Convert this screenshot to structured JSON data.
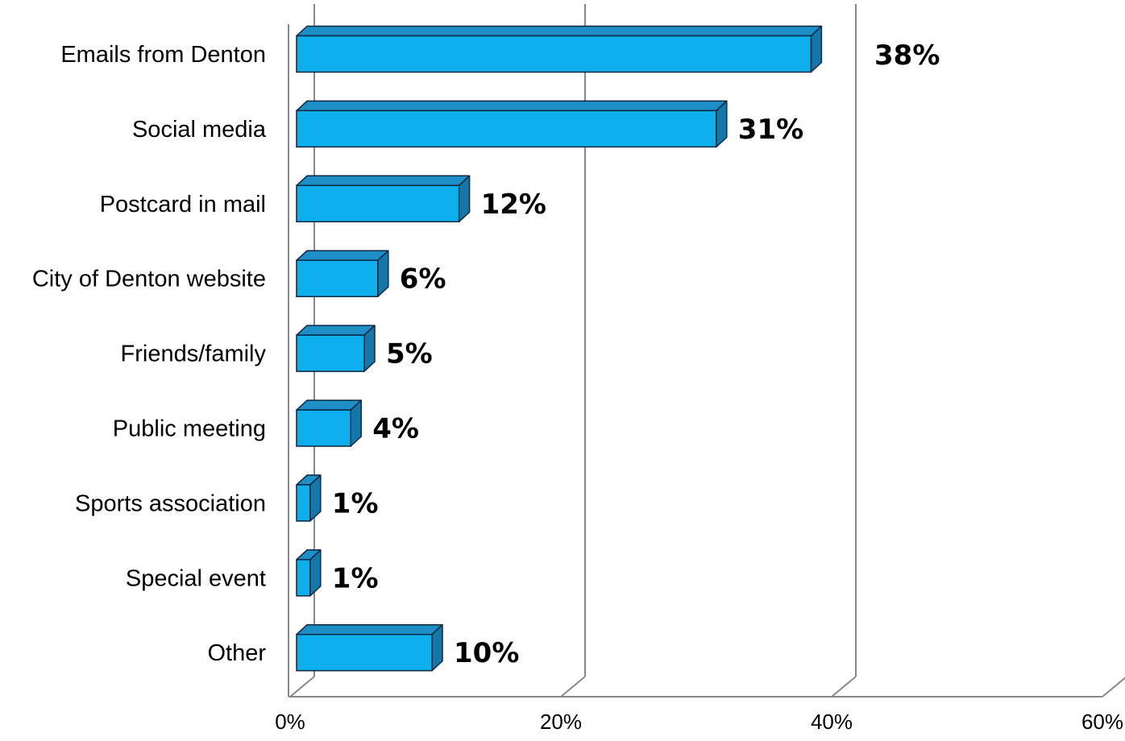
{
  "chart_data": {
    "type": "bar",
    "orientation": "horizontal",
    "style": "3d",
    "categories": [
      "Emails from Denton",
      "Social media",
      "Postcard in mail",
      "City of Denton website",
      "Friends/family",
      "Public meeting",
      "Sports association",
      "Special event",
      "Other"
    ],
    "values": [
      38,
      31,
      12,
      6,
      5,
      4,
      1,
      1,
      10
    ],
    "data_labels": [
      "38%",
      "31%",
      "12%",
      "6%",
      "5%",
      "4%",
      "1%",
      "1%",
      "10%"
    ],
    "xlim": [
      0,
      60
    ],
    "xticks": [
      0,
      20,
      40,
      60
    ],
    "xtick_labels": [
      "0%",
      "20%",
      "40%",
      "60%"
    ],
    "grid": true,
    "legend": "none",
    "colors": {
      "bar_front": "#0DB0EC",
      "bar_top": "#1E8FC6",
      "bar_side": "#1577A8",
      "bar_outline": "#0B2740",
      "grid": "#888888"
    }
  }
}
